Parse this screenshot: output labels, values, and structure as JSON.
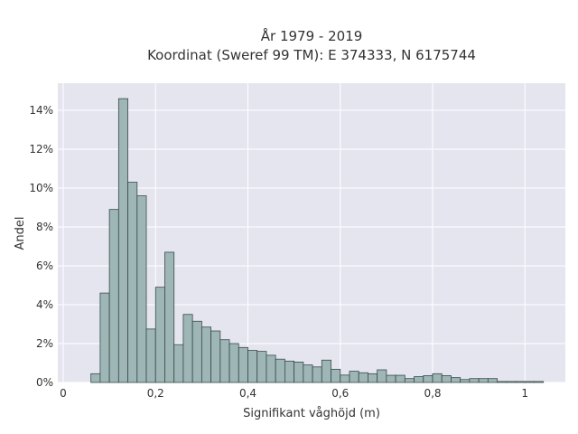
{
  "chart_data": {
    "type": "bar",
    "title_line1": "År 1979 - 2019",
    "title_line2": "Koordinat (Sweref 99 TM): E 374333, N 6175744",
    "xlabel": "Signifikant våghöjd (m)",
    "ylabel": "Andel",
    "xlim": [
      0,
      1.09
    ],
    "ylim": [
      0,
      0.146
    ],
    "x_ticks": [
      {
        "value": 0,
        "label": "0"
      },
      {
        "value": 0.2,
        "label": "0,2"
      },
      {
        "value": 0.4,
        "label": "0,4"
      },
      {
        "value": 0.6,
        "label": "0,6"
      },
      {
        "value": 0.8,
        "label": "0,8"
      },
      {
        "value": 1.0,
        "label": "1"
      }
    ],
    "y_ticks": [
      {
        "value": 0,
        "label": "0%"
      },
      {
        "value": 0.02,
        "label": "2%"
      },
      {
        "value": 0.04,
        "label": "4%"
      },
      {
        "value": 0.06,
        "label": "6%"
      },
      {
        "value": 0.08,
        "label": "8%"
      },
      {
        "value": 0.1,
        "label": "10%"
      },
      {
        "value": 0.12,
        "label": "12%"
      },
      {
        "value": 0.14,
        "label": "14%"
      }
    ],
    "bin_width": 0.02,
    "bins_start": [
      0.06,
      0.08,
      0.1,
      0.12,
      0.14,
      0.16,
      0.18,
      0.2,
      0.22,
      0.24,
      0.26,
      0.28,
      0.3,
      0.32,
      0.34,
      0.36,
      0.38,
      0.4,
      0.42,
      0.44,
      0.46,
      0.48,
      0.5,
      0.52,
      0.54,
      0.56,
      0.58,
      0.6,
      0.62,
      0.64,
      0.66,
      0.68,
      0.7,
      0.72,
      0.74,
      0.76,
      0.78,
      0.8,
      0.82,
      0.84,
      0.86,
      0.88,
      0.9,
      0.92,
      0.94,
      0.96,
      0.98,
      1.0,
      1.02
    ],
    "values": [
      0.0045,
      0.046,
      0.089,
      0.146,
      0.103,
      0.096,
      0.0275,
      0.049,
      0.067,
      0.0195,
      0.035,
      0.0315,
      0.0285,
      0.0265,
      0.022,
      0.02,
      0.018,
      0.0165,
      0.016,
      0.014,
      0.012,
      0.011,
      0.0105,
      0.009,
      0.008,
      0.0115,
      0.0068,
      0.0038,
      0.0058,
      0.005,
      0.0045,
      0.0065,
      0.0037,
      0.0037,
      0.002,
      0.003,
      0.0035,
      0.0045,
      0.0035,
      0.0025,
      0.0015,
      0.002,
      0.002,
      0.002,
      0.0005,
      0.0005,
      0.0005,
      0.0005,
      0.0005
    ],
    "colors": {
      "bar_fill": "#9eb6b6",
      "bar_stroke": "#3a4a4a",
      "plot_bg": "#e5e5f0",
      "grid": "#ffffff",
      "text": "#333333"
    }
  }
}
